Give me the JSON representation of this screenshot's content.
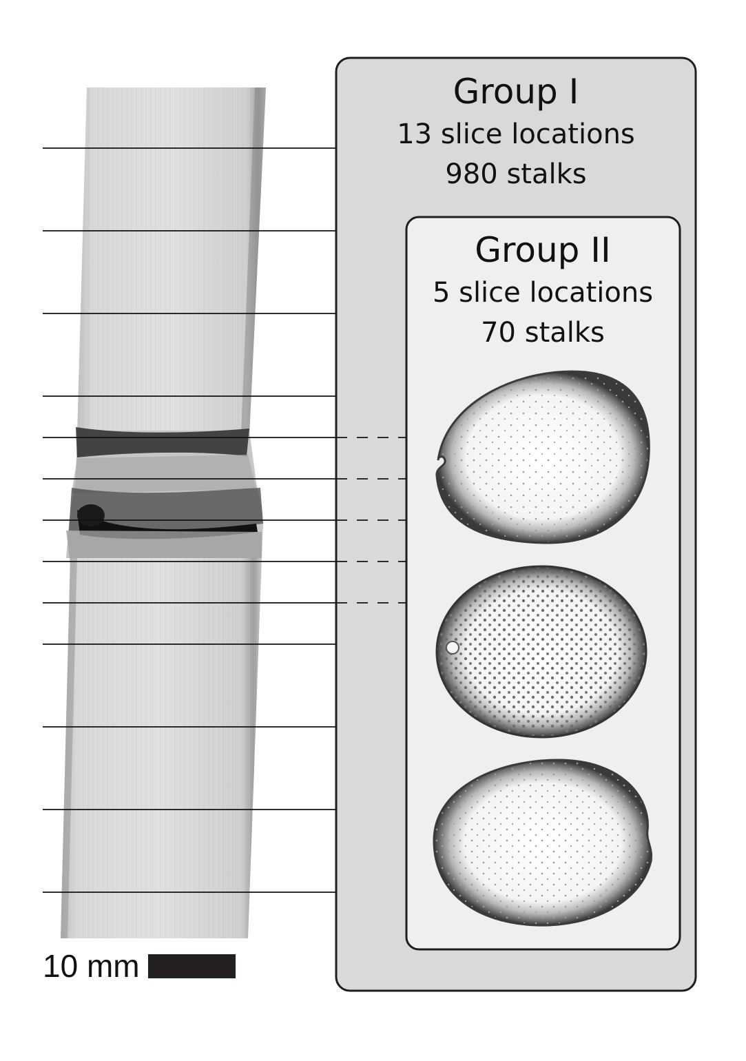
{
  "group1": {
    "title": "Group I",
    "line1": "13 slice locations",
    "line2": "980 stalks"
  },
  "group2": {
    "title": "Group II",
    "line1": "5 slice locations",
    "line2": "70 stalks"
  },
  "scale_bar": {
    "label": "10 mm"
  },
  "colors": {
    "outer_panel": "#d9d9db",
    "inner_panel": "#efefef",
    "stalk_light": "#d4d4d4",
    "stalk_dark": "#1a1a1a"
  }
}
